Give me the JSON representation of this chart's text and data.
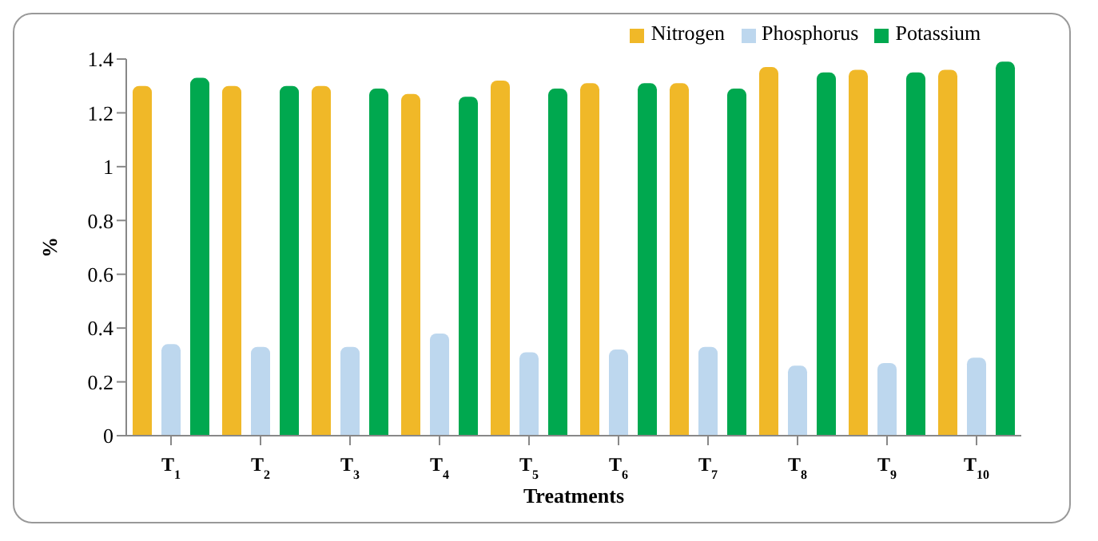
{
  "chart_data": {
    "type": "bar",
    "xlabel": "Treatments",
    "ylabel": "%",
    "categories": [
      "T$_{1}$",
      "T$_{2}$",
      "T$_{3}$",
      "T$_{4}$",
      "T$_{5}$",
      "T$_{6}$",
      "T$_{7}$",
      "T$_{8}$",
      "T$_{9}$",
      "T$_{10}$"
    ],
    "series": [
      {
        "name": "Nitrogen",
        "color": "#f0b828",
        "values": [
          1.3,
          1.3,
          1.3,
          1.27,
          1.32,
          1.31,
          1.31,
          1.37,
          1.36,
          1.36
        ]
      },
      {
        "name": "Phosphorus",
        "color": "#bdd7ee",
        "values": [
          0.34,
          0.33,
          0.33,
          0.38,
          0.31,
          0.32,
          0.33,
          0.26,
          0.27,
          0.29
        ]
      },
      {
        "name": "Potassium",
        "color": "#00a84f",
        "values": [
          1.33,
          1.3,
          1.29,
          1.26,
          1.29,
          1.31,
          1.29,
          1.35,
          1.35,
          1.39
        ]
      }
    ],
    "ylim": [
      0,
      1.4
    ],
    "yticks": [
      0,
      0.2,
      0.4,
      0.6,
      0.8,
      1,
      1.2,
      1.4
    ],
    "grid": false,
    "legend": "top"
  }
}
